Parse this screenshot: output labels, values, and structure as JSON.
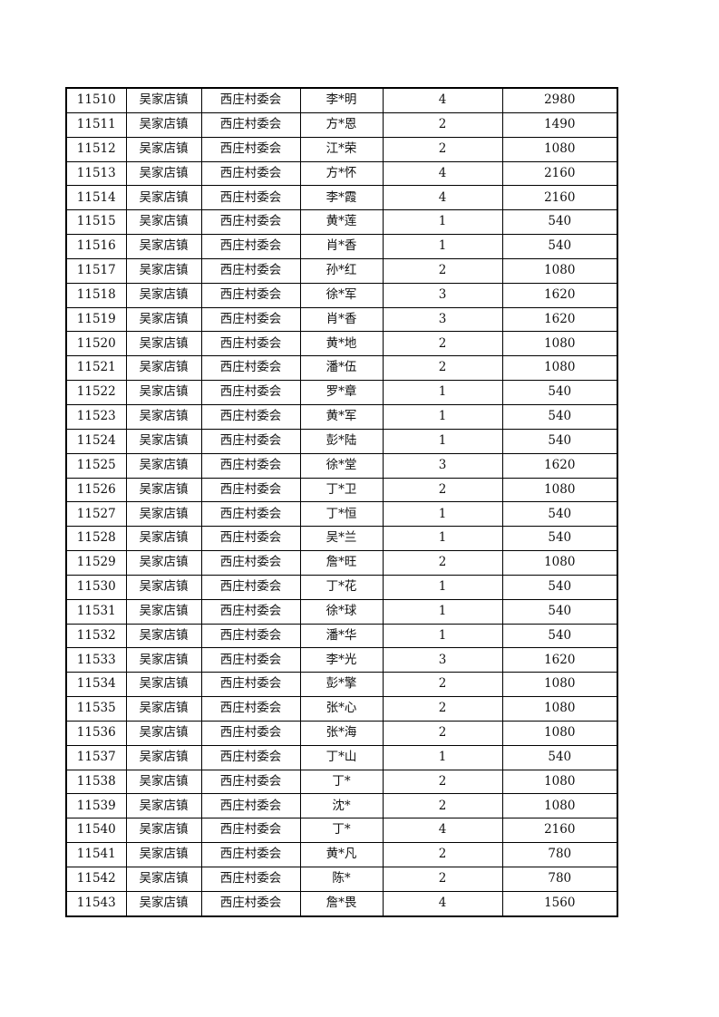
{
  "rows": [
    [
      "11510",
      "吴家店镇",
      "西庄村委会",
      "李*明",
      "4",
      "2980"
    ],
    [
      "11511",
      "吴家店镇",
      "西庄村委会",
      "方*恩",
      "2",
      "1490"
    ],
    [
      "11512",
      "吴家店镇",
      "西庄村委会",
      "江*荣",
      "2",
      "1080"
    ],
    [
      "11513",
      "吴家店镇",
      "西庄村委会",
      "方*怀",
      "4",
      "2160"
    ],
    [
      "11514",
      "吴家店镇",
      "西庄村委会",
      "李*霞",
      "4",
      "2160"
    ],
    [
      "11515",
      "吴家店镇",
      "西庄村委会",
      "黄*莲",
      "1",
      "540"
    ],
    [
      "11516",
      "吴家店镇",
      "西庄村委会",
      "肖*香",
      "1",
      "540"
    ],
    [
      "11517",
      "吴家店镇",
      "西庄村委会",
      "孙*红",
      "2",
      "1080"
    ],
    [
      "11518",
      "吴家店镇",
      "西庄村委会",
      "徐*军",
      "3",
      "1620"
    ],
    [
      "11519",
      "吴家店镇",
      "西庄村委会",
      "肖*香",
      "3",
      "1620"
    ],
    [
      "11520",
      "吴家店镇",
      "西庄村委会",
      "黄*地",
      "2",
      "1080"
    ],
    [
      "11521",
      "吴家店镇",
      "西庄村委会",
      "潘*伍",
      "2",
      "1080"
    ],
    [
      "11522",
      "吴家店镇",
      "西庄村委会",
      "罗*章",
      "1",
      "540"
    ],
    [
      "11523",
      "吴家店镇",
      "西庄村委会",
      "黄*军",
      "1",
      "540"
    ],
    [
      "11524",
      "吴家店镇",
      "西庄村委会",
      "彭*陆",
      "1",
      "540"
    ],
    [
      "11525",
      "吴家店镇",
      "西庄村委会",
      "徐*堂",
      "3",
      "1620"
    ],
    [
      "11526",
      "吴家店镇",
      "西庄村委会",
      "丁*卫",
      "2",
      "1080"
    ],
    [
      "11527",
      "吴家店镇",
      "西庄村委会",
      "丁*恒",
      "1",
      "540"
    ],
    [
      "11528",
      "吴家店镇",
      "西庄村委会",
      "吴*兰",
      "1",
      "540"
    ],
    [
      "11529",
      "吴家店镇",
      "西庄村委会",
      "詹*旺",
      "2",
      "1080"
    ],
    [
      "11530",
      "吴家店镇",
      "西庄村委会",
      "丁*花",
      "1",
      "540"
    ],
    [
      "11531",
      "吴家店镇",
      "西庄村委会",
      "徐*球",
      "1",
      "540"
    ],
    [
      "11532",
      "吴家店镇",
      "西庄村委会",
      "潘*华",
      "1",
      "540"
    ],
    [
      "11533",
      "吴家店镇",
      "西庄村委会",
      "李*光",
      "3",
      "1620"
    ],
    [
      "11534",
      "吴家店镇",
      "西庄村委会",
      "彭*擎",
      "2",
      "1080"
    ],
    [
      "11535",
      "吴家店镇",
      "西庄村委会",
      "张*心",
      "2",
      "1080"
    ],
    [
      "11536",
      "吴家店镇",
      "西庄村委会",
      "张*海",
      "2",
      "1080"
    ],
    [
      "11537",
      "吴家店镇",
      "西庄村委会",
      "丁*山",
      "1",
      "540"
    ],
    [
      "11538",
      "吴家店镇",
      "西庄村委会",
      "丁*",
      "2",
      "1080"
    ],
    [
      "11539",
      "吴家店镇",
      "西庄村委会",
      "沈*",
      "2",
      "1080"
    ],
    [
      "11540",
      "吴家店镇",
      "西庄村委会",
      "丁*",
      "4",
      "2160"
    ],
    [
      "11541",
      "吴家店镇",
      "西庄村委会",
      "黄*凡",
      "2",
      "780"
    ],
    [
      "11542",
      "吴家店镇",
      "西庄村委会",
      "陈*",
      "2",
      "780"
    ],
    [
      "11543",
      "吴家店镇",
      "西庄村委会",
      "詹*畏",
      "4",
      "1560"
    ]
  ]
}
